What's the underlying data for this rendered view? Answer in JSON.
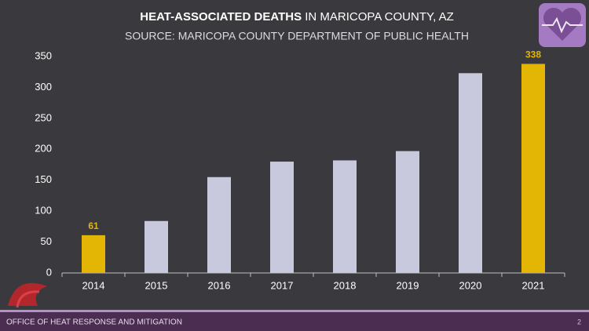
{
  "chart_data": {
    "type": "bar",
    "title": [
      "HEAT-ASSOCIATED DEATHS",
      "IN MARICOPA COUNTY, AZ"
    ],
    "subtitle": "SOURCE: MARICOPA COUNTY DEPARTMENT OF PUBLIC HEALTH",
    "categories": [
      "2014",
      "2015",
      "2016",
      "2017",
      "2018",
      "2019",
      "2020",
      "2021"
    ],
    "values": [
      61,
      84,
      155,
      180,
      182,
      197,
      323,
      338
    ],
    "value_labels": [
      "61",
      null,
      null,
      null,
      null,
      null,
      null,
      "338"
    ],
    "colors": [
      "#e3b505",
      "#c9c9dd",
      "#c9c9dd",
      "#c9c9dd",
      "#c9c9dd",
      "#c9c9dd",
      "#c9c9dd",
      "#e3b505"
    ],
    "ylim": [
      0,
      350
    ],
    "yticks": [
      0,
      50,
      100,
      150,
      200,
      250,
      300,
      350
    ],
    "grid": false
  },
  "footer": {
    "text": "OFFICE OF HEAT RESPONSE AND MITIGATION",
    "page": "2"
  }
}
